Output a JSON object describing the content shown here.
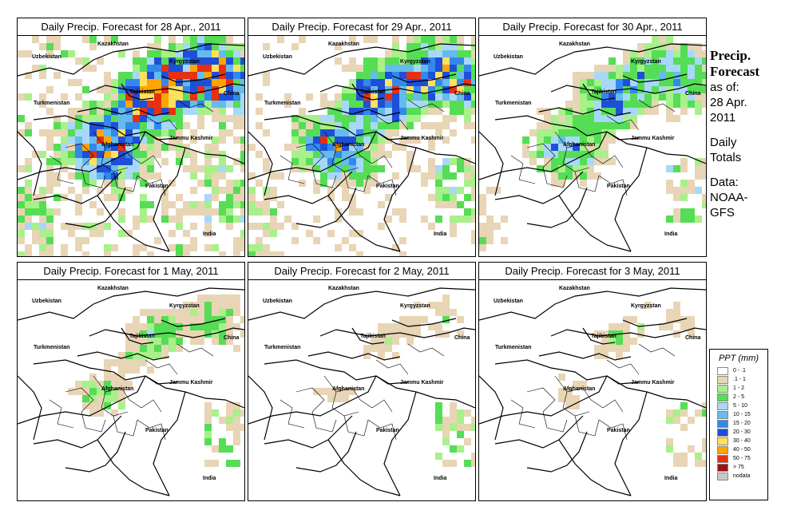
{
  "panels": [
    {
      "title": "Daily Precip. Forecast for  28 Apr., 2011",
      "intensity": 1.0
    },
    {
      "title": "Daily Precip. Forecast for  29 Apr., 2011",
      "intensity": 0.8
    },
    {
      "title": "Daily Precip. Forecast for  30 Apr., 2011",
      "intensity": 0.55
    },
    {
      "title": "Daily Precip. Forecast for  1 May, 2011",
      "intensity": 0.3
    },
    {
      "title": "Daily Precip. Forecast for  2 May, 2011",
      "intensity": 0.2
    },
    {
      "title": "Daily Precip. Forecast for  3 May, 2011",
      "intensity": 0.2
    }
  ],
  "map_labels": {
    "kazakhstan": "Kazakhstan",
    "uzbekistan": "Uzbekistan",
    "kyrgyzstan": "Kyrgyzstan",
    "tajikistan": "Tajikistan",
    "china": "China",
    "turkmenistan": "Turkmenistan",
    "afghanistan": "Afghanistan",
    "jammu_kashmir": "Jammu Kashmir",
    "pakistan": "Pakistan",
    "india": "India"
  },
  "sidebar": {
    "title_line1": "Precip.",
    "title_line2": "Forecast",
    "as_of_line1": "as of:",
    "as_of_line2": "28 Apr.",
    "as_of_line3": "2011",
    "totals_line1": "Daily",
    "totals_line2": "Totals",
    "data_line1": "Data:",
    "data_line2": "NOAA-",
    "data_line3": "GFS"
  },
  "legend": {
    "title": "PPT (mm)",
    "items": [
      {
        "label": "0 - .1",
        "color": "#ffffff"
      },
      {
        "label": ".1 - 1",
        "color": "#e8d5b5"
      },
      {
        "label": "1 - 2",
        "color": "#a8f08a"
      },
      {
        "label": "2 - 5",
        "color": "#55dd55"
      },
      {
        "label": "5 - 10",
        "color": "#a8d8f8"
      },
      {
        "label": "10 - 15",
        "color": "#66bbee"
      },
      {
        "label": "15 - 20",
        "color": "#3388ee"
      },
      {
        "label": "20 - 30",
        "color": "#1e4fd8"
      },
      {
        "label": "30 - 40",
        "color": "#ffe060"
      },
      {
        "label": "40 - 50",
        "color": "#ffa500"
      },
      {
        "label": "50 - 75",
        "color": "#e83010"
      },
      {
        "label": "> 75",
        "color": "#a01010"
      },
      {
        "label": "nodata",
        "color": "#c8c8c8"
      }
    ]
  }
}
